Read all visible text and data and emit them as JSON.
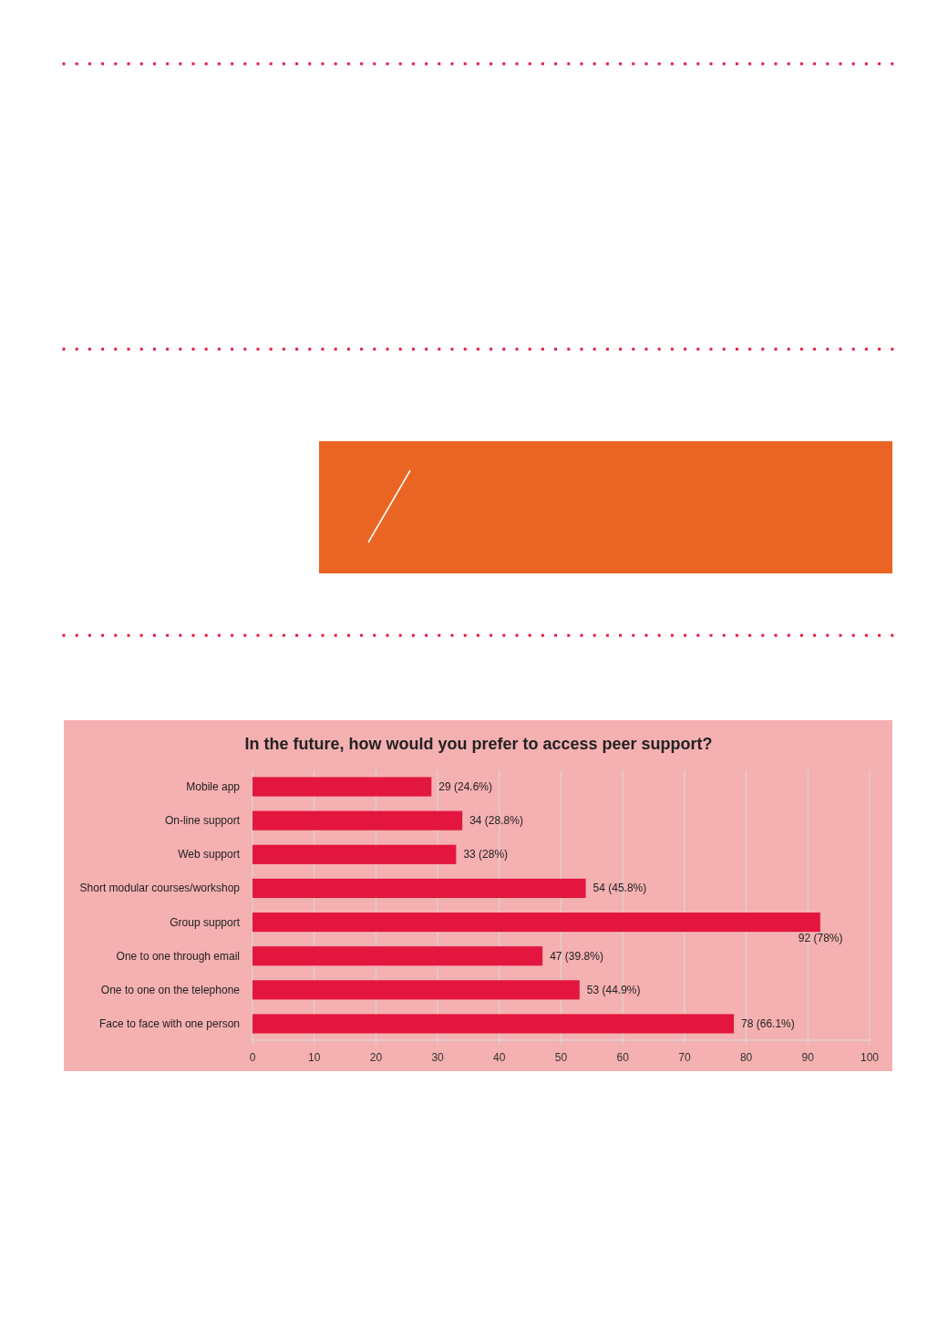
{
  "chart_data": {
    "type": "bar",
    "orientation": "horizontal",
    "title": "In the future, how would you prefer to access peer support?",
    "categories": [
      "Mobile app",
      "On-line support",
      "Web support",
      "Short modular courses/workshop",
      "Group support",
      "One to one through email",
      "One to one on the telephone",
      "Face to face with one person"
    ],
    "values": [
      29,
      34,
      33,
      54,
      92,
      47,
      53,
      78
    ],
    "value_labels": [
      "29 (24.6%)",
      "34 (28.8%)",
      "33 (28%)",
      "54 (45.8%)",
      "92 (78%)",
      "47 (39.8%)",
      "53 (44.9%)",
      "78 (66.1%)"
    ],
    "color": "#e3163f",
    "xlim": [
      0,
      100
    ],
    "xticks": [
      0,
      10,
      20,
      30,
      40,
      50,
      60,
      70,
      80,
      90,
      100
    ],
    "grid": "x"
  }
}
